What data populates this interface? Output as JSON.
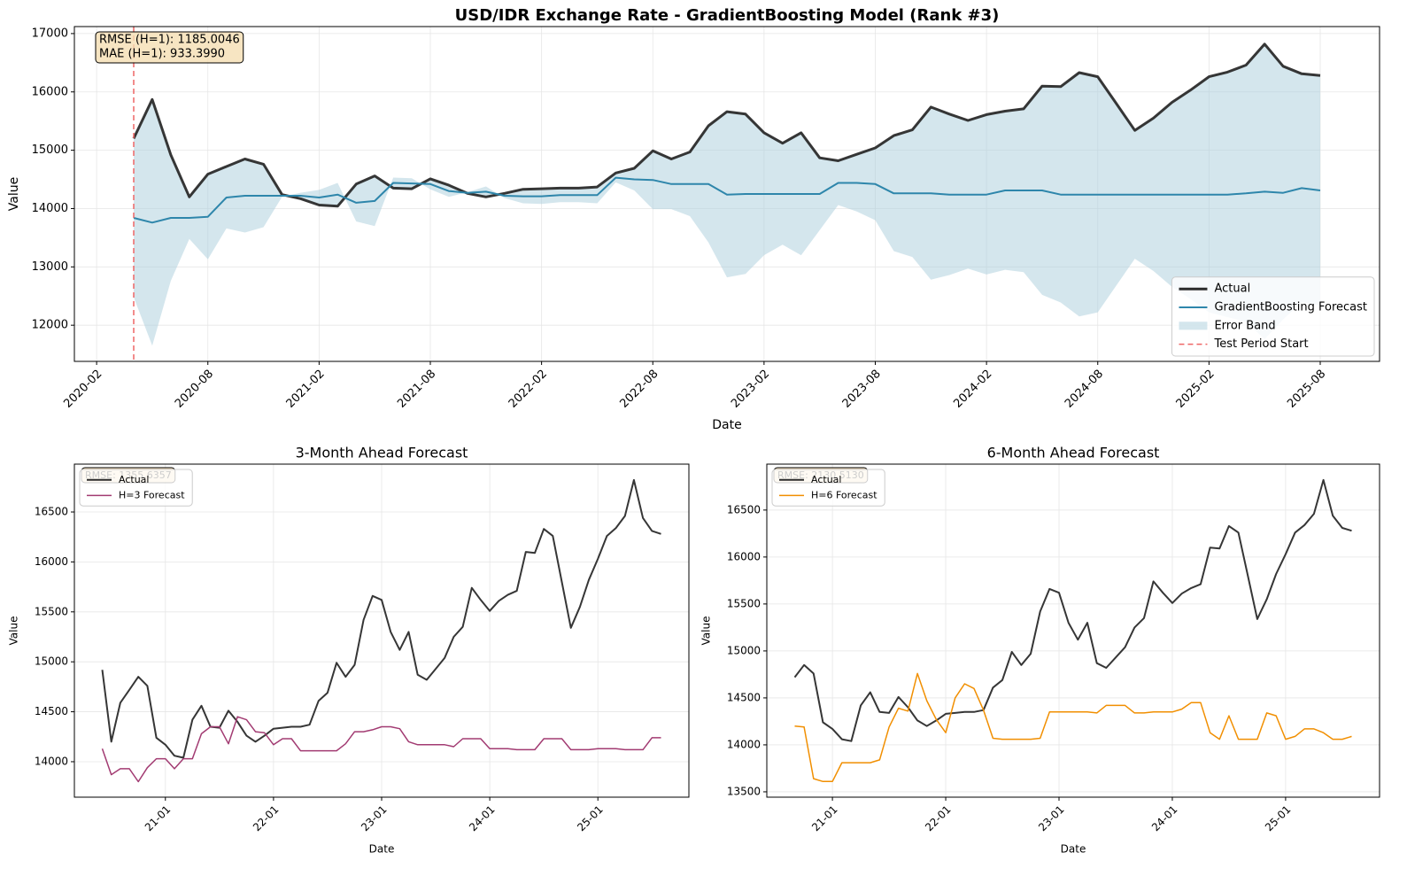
{
  "chart_data": [
    {
      "type": "line",
      "title": "USD/IDR Exchange Rate - GradientBoosting Model (Rank #3)",
      "xlabel": "Date",
      "ylabel": "Value",
      "x": [
        "2020-04",
        "2020-05",
        "2020-06",
        "2020-07",
        "2020-08",
        "2020-09",
        "2020-10",
        "2020-11",
        "2020-12",
        "2021-01",
        "2021-02",
        "2021-03",
        "2021-04",
        "2021-05",
        "2021-06",
        "2021-07",
        "2021-08",
        "2021-09",
        "2021-10",
        "2021-11",
        "2021-12",
        "2022-01",
        "2022-02",
        "2022-03",
        "2022-04",
        "2022-05",
        "2022-06",
        "2022-07",
        "2022-08",
        "2022-09",
        "2022-10",
        "2022-11",
        "2022-12",
        "2023-01",
        "2023-02",
        "2023-03",
        "2023-04",
        "2023-05",
        "2023-06",
        "2023-07",
        "2023-08",
        "2023-09",
        "2023-10",
        "2023-11",
        "2023-12",
        "2024-01",
        "2024-02",
        "2024-03",
        "2024-04",
        "2024-05",
        "2024-06",
        "2024-07",
        "2024-08",
        "2024-09",
        "2024-10",
        "2024-11",
        "2024-12",
        "2025-01",
        "2025-02",
        "2025-03",
        "2025-04",
        "2025-05",
        "2025-06",
        "2025-07",
        "2025-08"
      ],
      "series": [
        {
          "name": "Actual",
          "color": "#2b2b2b",
          "values": [
            15200,
            15870,
            14920,
            14200,
            14590,
            14720,
            14850,
            14760,
            14240,
            14170,
            14060,
            14040,
            14420,
            14560,
            14350,
            14340,
            14510,
            14400,
            14260,
            14200,
            14260,
            14330,
            14340,
            14350,
            14350,
            14370,
            14610,
            14690,
            14990,
            14850,
            14970,
            15420,
            15660,
            15620,
            15300,
            15120,
            15300,
            14870,
            14820,
            14930,
            15040,
            15250,
            15350,
            15740,
            15620,
            15510,
            15610,
            15670,
            15710,
            16100,
            16090,
            16330,
            16260,
            15800,
            15340,
            15550,
            15820,
            16030,
            16260,
            16340,
            16460,
            16820,
            16440,
            16310,
            16280
          ]
        },
        {
          "name": "GradientBoosting Forecast",
          "color": "#2e86ab",
          "values": [
            13840,
            13760,
            13840,
            13840,
            13860,
            14190,
            14220,
            14220,
            14220,
            14220,
            14190,
            14240,
            14100,
            14130,
            14440,
            14430,
            14420,
            14300,
            14270,
            14290,
            14220,
            14210,
            14210,
            14230,
            14230,
            14230,
            14530,
            14500,
            14490,
            14420,
            14420,
            14420,
            14240,
            14250,
            14250,
            14250,
            14250,
            14250,
            14440,
            14440,
            14420,
            14260,
            14260,
            14260,
            14240,
            14240,
            14240,
            14310,
            14310,
            14310,
            14240,
            14240,
            14240,
            14240,
            14240,
            14240,
            14240,
            14240,
            14240,
            14240,
            14260,
            14290,
            14270,
            14350,
            14310
          ]
        }
      ],
      "band": {
        "name": "Error Band",
        "color": "#a9cddc",
        "values": [
          12480,
          11650,
          12760,
          13480,
          13130,
          13660,
          13590,
          13680,
          14200,
          14270,
          14320,
          14440,
          13780,
          13700,
          14530,
          14520,
          14330,
          14200,
          14280,
          14380,
          14180,
          14090,
          14080,
          14110,
          14110,
          14090,
          14450,
          14310,
          13990,
          13990,
          13870,
          13420,
          12820,
          12880,
          13200,
          13380,
          13200,
          13630,
          14060,
          13950,
          13800,
          13270,
          13170,
          12780,
          12860,
          12970,
          12870,
          12950,
          12910,
          12520,
          12390,
          12150,
          12220,
          12680,
          13140,
          12930,
          12660,
          12450,
          12220,
          12140,
          12060,
          11760,
          12100,
          12390,
          12340
        ]
      },
      "vline": {
        "name": "Test Period Start",
        "x": "2020-04",
        "color": "#ee6666"
      },
      "annotation": [
        "RMSE (H=1): 1185.0046",
        "MAE (H=1): 933.3990"
      ],
      "ylim": [
        11380,
        17120
      ],
      "yticks": [
        12000,
        13000,
        14000,
        15000,
        16000,
        17000
      ],
      "xticks": [
        "2020-02",
        "2020-08",
        "2021-02",
        "2021-08",
        "2022-02",
        "2022-08",
        "2023-02",
        "2023-08",
        "2024-02",
        "2024-08",
        "2025-02",
        "2025-08"
      ],
      "grid": true,
      "legend": "lower right"
    },
    {
      "type": "line",
      "title": "3-Month Ahead Forecast",
      "xlabel": "Date",
      "ylabel": "Value",
      "x": [
        "20-06",
        "20-07",
        "20-08",
        "20-09",
        "20-10",
        "20-11",
        "20-12",
        "21-01",
        "21-02",
        "21-03",
        "21-04",
        "21-05",
        "21-06",
        "21-07",
        "21-08",
        "21-09",
        "21-10",
        "21-11",
        "21-12",
        "22-01",
        "22-02",
        "22-03",
        "22-04",
        "22-05",
        "22-06",
        "22-07",
        "22-08",
        "22-09",
        "22-10",
        "22-11",
        "22-12",
        "23-01",
        "23-02",
        "23-03",
        "23-04",
        "23-05",
        "23-06",
        "23-07",
        "23-08",
        "23-09",
        "23-10",
        "23-11",
        "23-12",
        "24-01",
        "24-02",
        "24-03",
        "24-04",
        "24-05",
        "24-06",
        "24-07",
        "24-08",
        "24-09",
        "24-10",
        "24-11",
        "24-12",
        "25-01",
        "25-02",
        "25-03",
        "25-04",
        "25-05",
        "25-06",
        "25-07",
        "25-08"
      ],
      "series": [
        {
          "name": "Actual",
          "color": "#2b2b2b",
          "values": [
            14920,
            14200,
            14590,
            14720,
            14850,
            14760,
            14240,
            14170,
            14060,
            14040,
            14420,
            14560,
            14350,
            14340,
            14510,
            14400,
            14260,
            14200,
            14260,
            14330,
            14340,
            14350,
            14350,
            14370,
            14610,
            14690,
            14990,
            14850,
            14970,
            15420,
            15660,
            15620,
            15300,
            15120,
            15300,
            14870,
            14820,
            14930,
            15040,
            15250,
            15350,
            15740,
            15620,
            15510,
            15610,
            15670,
            15710,
            16100,
            16090,
            16330,
            16260,
            15800,
            15340,
            15550,
            15820,
            16030,
            16260,
            16340,
            16460,
            16820,
            16440,
            16310,
            16280
          ]
        },
        {
          "name": "H=3 Forecast",
          "color": "#a23b72",
          "values": [
            14130,
            13870,
            13930,
            13930,
            13800,
            13940,
            14030,
            14030,
            13930,
            14030,
            14030,
            14280,
            14350,
            14350,
            14180,
            14450,
            14420,
            14300,
            14290,
            14170,
            14230,
            14230,
            14110,
            14110,
            14110,
            14110,
            14110,
            14180,
            14300,
            14300,
            14320,
            14350,
            14350,
            14330,
            14200,
            14170,
            14170,
            14170,
            14170,
            14150,
            14230,
            14230,
            14230,
            14130,
            14130,
            14130,
            14120,
            14120,
            14120,
            14230,
            14230,
            14230,
            14120,
            14120,
            14120,
            14130,
            14130,
            14130,
            14120,
            14120,
            14120,
            14240,
            14240
          ]
        }
      ],
      "annotation": [
        "RMSE: 1355.6357"
      ],
      "ylim": [
        13645,
        16979
      ],
      "yticks": [
        14000,
        14500,
        15000,
        15500,
        16000,
        16500
      ],
      "xticks": [
        "21-01",
        "22-01",
        "23-01",
        "24-01",
        "25-01"
      ],
      "grid": true,
      "legend": "upper left"
    },
    {
      "type": "line",
      "title": "6-Month Ahead Forecast",
      "xlabel": "Date",
      "ylabel": "Value",
      "x": [
        "20-09",
        "20-10",
        "20-11",
        "20-12",
        "21-01",
        "21-02",
        "21-03",
        "21-04",
        "21-05",
        "21-06",
        "21-07",
        "21-08",
        "21-09",
        "21-10",
        "21-11",
        "21-12",
        "22-01",
        "22-02",
        "22-03",
        "22-04",
        "22-05",
        "22-06",
        "22-07",
        "22-08",
        "22-09",
        "22-10",
        "22-11",
        "22-12",
        "23-01",
        "23-02",
        "23-03",
        "23-04",
        "23-05",
        "23-06",
        "23-07",
        "23-08",
        "23-09",
        "23-10",
        "23-11",
        "23-12",
        "24-01",
        "24-02",
        "24-03",
        "24-04",
        "24-05",
        "24-06",
        "24-07",
        "24-08",
        "24-09",
        "24-10",
        "24-11",
        "24-12",
        "25-01",
        "25-02",
        "25-03",
        "25-04",
        "25-05",
        "25-06",
        "25-07",
        "25-08"
      ],
      "series": [
        {
          "name": "Actual",
          "color": "#2b2b2b",
          "values": [
            14720,
            14850,
            14760,
            14240,
            14170,
            14060,
            14040,
            14420,
            14560,
            14350,
            14340,
            14510,
            14400,
            14260,
            14200,
            14260,
            14330,
            14340,
            14350,
            14350,
            14370,
            14610,
            14690,
            14990,
            14850,
            14970,
            15420,
            15660,
            15620,
            15300,
            15120,
            15300,
            14870,
            14820,
            14930,
            15040,
            15250,
            15350,
            15740,
            15620,
            15510,
            15610,
            15670,
            15710,
            16100,
            16090,
            16330,
            16260,
            15800,
            15340,
            15550,
            15820,
            16030,
            16260,
            16340,
            16460,
            16820,
            16440,
            16310,
            16280
          ]
        },
        {
          "name": "H=6 Forecast",
          "color": "#f18f01",
          "values": [
            14200,
            14190,
            13640,
            13610,
            13610,
            13810,
            13810,
            13810,
            13810,
            13840,
            14190,
            14390,
            14360,
            14760,
            14470,
            14270,
            14130,
            14500,
            14650,
            14600,
            14370,
            14070,
            14060,
            14060,
            14060,
            14060,
            14070,
            14350,
            14350,
            14350,
            14350,
            14350,
            14340,
            14420,
            14420,
            14420,
            14340,
            14340,
            14350,
            14350,
            14350,
            14380,
            14450,
            14450,
            14130,
            14060,
            14310,
            14060,
            14060,
            14060,
            14340,
            14310,
            14060,
            14090,
            14170,
            14170,
            14130,
            14060,
            14060,
            14090
          ]
        }
      ],
      "annotation": [
        "RMSE: 2130.5130"
      ],
      "ylim": [
        13443,
        16989
      ],
      "yticks": [
        13500,
        14000,
        14500,
        15000,
        15500,
        16000,
        16500
      ],
      "xticks": [
        "21-01",
        "22-01",
        "23-01",
        "24-01",
        "25-01"
      ],
      "grid": true,
      "legend": "upper left"
    }
  ]
}
